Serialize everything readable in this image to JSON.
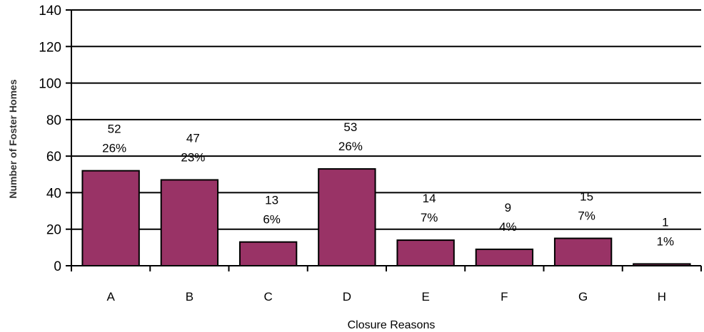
{
  "chart_data": {
    "type": "bar",
    "categories": [
      "A",
      "B",
      "C",
      "D",
      "E",
      "F",
      "G",
      "H"
    ],
    "values": [
      52,
      47,
      13,
      53,
      14,
      9,
      15,
      1
    ],
    "percent_labels": [
      "26%",
      "23%",
      "6%",
      "26%",
      "7%",
      "4%",
      "7%",
      "1%"
    ],
    "xlabel": "Closure Reasons",
    "ylabel": "Number of Foster Homes",
    "ylim": [
      0,
      140
    ],
    "yticks": [
      0,
      20,
      40,
      60,
      80,
      100,
      120,
      140
    ],
    "grid": true,
    "bar_color": "#993366",
    "legend": "none"
  }
}
